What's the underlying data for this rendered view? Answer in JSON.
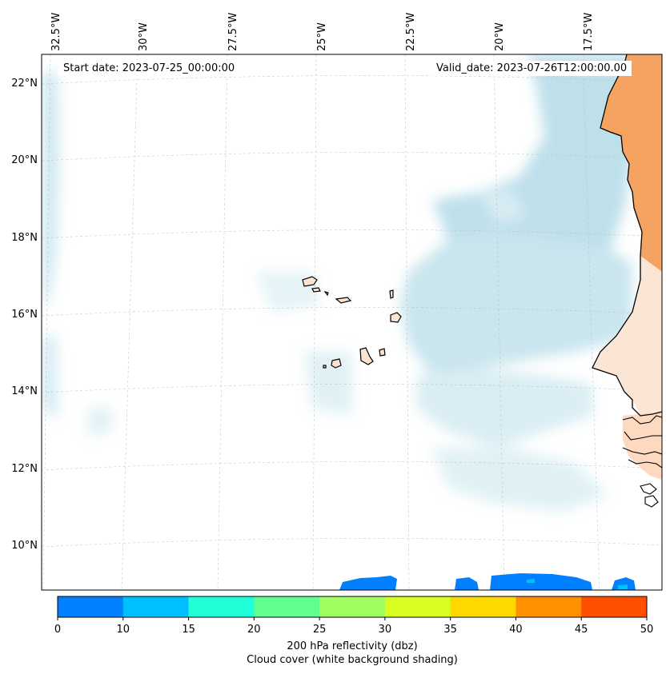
{
  "map": {
    "start_date": "Start date: 2023-07-25_00:00:00",
    "valid_date": "Valid_date: 2023-07-26T12:00:00.00",
    "lon_labels": [
      "32.5°W",
      "30°W",
      "27.5°W",
      "25°W",
      "22.5°W",
      "20°W",
      "17.5°W"
    ],
    "lat_labels": [
      "22°N",
      "20°N",
      "18°N",
      "16°N",
      "14°N",
      "12°N",
      "10°N"
    ],
    "colors": {
      "cloud": "#a9d6e5",
      "land_orange": "#f4a460",
      "land_light": "#fbe3d0",
      "coast": "#000000",
      "reflectivity_low": "#0080ff",
      "reflectivity_mid": "#00bfff"
    }
  },
  "colorbar": {
    "ticks": [
      "0",
      "10",
      "15",
      "20",
      "25",
      "30",
      "35",
      "40",
      "45",
      "50"
    ],
    "colors": [
      "#0080ff",
      "#00bfff",
      "#20ffd8",
      "#60ff90",
      "#a0ff60",
      "#d8ff20",
      "#ffd800",
      "#ff9000",
      "#ff5000"
    ],
    "label_line1": "200 hPa reflectivity (dbz)",
    "label_line2": "Cloud cover (white background shading)"
  }
}
